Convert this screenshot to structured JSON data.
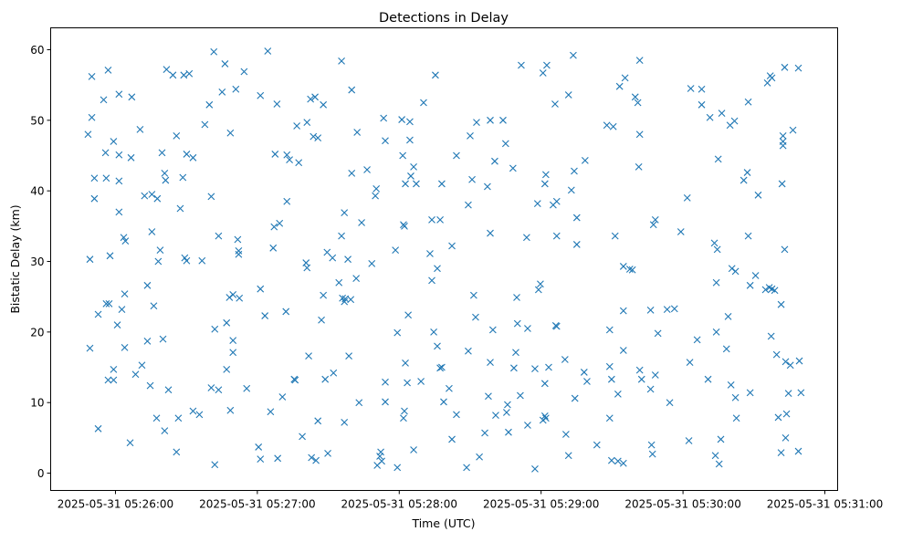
{
  "chart_data": {
    "type": "scatter",
    "title": "Detections in Delay",
    "xlabel": "Time (UTC)",
    "ylabel": "Bistatic Delay (km)",
    "x_units": "seconds since 2025-05-31 05:26:00",
    "xlim": [
      -27.4,
      305.4
    ],
    "ylim": [
      -2.45,
      63.1
    ],
    "grid": false,
    "marker": "x",
    "color": "#1f77b4",
    "xticks": [
      {
        "value": 0,
        "label": "2025-05-31 05:26:00"
      },
      {
        "value": 60,
        "label": "2025-05-31 05:27:00"
      },
      {
        "value": 120,
        "label": "2025-05-31 05:28:00"
      },
      {
        "value": 180,
        "label": "2025-05-31 05:29:00"
      },
      {
        "value": 240,
        "label": "2025-05-31 05:30:00"
      },
      {
        "value": 300,
        "label": "2025-05-31 05:31:00"
      }
    ],
    "yticks": [
      {
        "value": 0,
        "label": "0"
      },
      {
        "value": 10,
        "label": "10"
      },
      {
        "value": 20,
        "label": "20"
      },
      {
        "value": 30,
        "label": "30"
      },
      {
        "value": 40,
        "label": "40"
      },
      {
        "value": 50,
        "label": "50"
      },
      {
        "value": 60,
        "label": "60"
      }
    ],
    "points": [
      [
        -11.6,
        48.0
      ],
      [
        -10.8,
        30.3
      ],
      [
        -10.8,
        17.7
      ],
      [
        -10.0,
        56.2
      ],
      [
        -10.0,
        50.4
      ],
      [
        -8.9,
        41.8
      ],
      [
        -8.9,
        38.9
      ],
      [
        -7.3,
        22.5
      ],
      [
        -7.3,
        6.3
      ],
      [
        -5.0,
        52.9
      ],
      [
        -4.2,
        45.4
      ],
      [
        -3.9,
        41.8
      ],
      [
        -3.1,
        57.1
      ],
      [
        -3.9,
        24.0
      ],
      [
        -3.1,
        13.2
      ],
      [
        -2.3,
        30.8
      ],
      [
        -2.7,
        24.0
      ],
      [
        -0.8,
        13.2
      ],
      [
        -0.8,
        47.0
      ],
      [
        -0.8,
        14.7
      ],
      [
        0.8,
        21.0
      ],
      [
        1.5,
        53.7
      ],
      [
        1.5,
        41.4
      ],
      [
        1.5,
        45.1
      ],
      [
        1.5,
        37.0
      ],
      [
        2.7,
        23.2
      ],
      [
        3.5,
        33.4
      ],
      [
        3.9,
        25.4
      ],
      [
        3.9,
        17.8
      ],
      [
        4.2,
        32.9
      ],
      [
        6.2,
        4.3
      ],
      [
        6.6,
        44.7
      ],
      [
        6.9,
        53.3
      ],
      [
        8.5,
        14.0
      ],
      [
        10.4,
        48.7
      ],
      [
        11.2,
        15.3
      ],
      [
        12.3,
        39.3
      ],
      [
        13.5,
        26.6
      ],
      [
        13.5,
        18.7
      ],
      [
        14.7,
        12.4
      ],
      [
        15.4,
        34.2
      ],
      [
        15.4,
        39.5
      ],
      [
        16.2,
        23.7
      ],
      [
        17.4,
        7.8
      ],
      [
        18.1,
        30.0
      ],
      [
        17.7,
        38.9
      ],
      [
        18.9,
        31.6
      ],
      [
        19.7,
        45.4
      ],
      [
        20.1,
        19.0
      ],
      [
        20.8,
        42.5
      ],
      [
        21.2,
        41.5
      ],
      [
        20.8,
        6.0
      ],
      [
        21.6,
        57.2
      ],
      [
        22.4,
        11.8
      ],
      [
        24.3,
        56.4
      ],
      [
        25.8,
        47.8
      ],
      [
        25.8,
        3.0
      ],
      [
        26.6,
        7.8
      ],
      [
        27.4,
        37.5
      ],
      [
        28.5,
        41.9
      ],
      [
        28.9,
        56.4
      ],
      [
        29.3,
        30.5
      ],
      [
        30.1,
        45.2
      ],
      [
        30.1,
        30.1
      ],
      [
        31.2,
        56.6
      ],
      [
        32.8,
        44.7
      ],
      [
        32.8,
        8.8
      ],
      [
        35.5,
        8.3
      ],
      [
        36.6,
        30.1
      ],
      [
        37.8,
        49.4
      ],
      [
        39.7,
        52.2
      ],
      [
        40.5,
        39.2
      ],
      [
        40.5,
        12.1
      ],
      [
        41.6,
        59.7
      ],
      [
        42.0,
        1.2
      ],
      [
        42.0,
        20.4
      ],
      [
        43.6,
        11.8
      ],
      [
        43.6,
        33.6
      ],
      [
        45.1,
        54.0
      ],
      [
        46.3,
        58.0
      ],
      [
        47.0,
        21.3
      ],
      [
        47.0,
        14.7
      ],
      [
        48.2,
        24.9
      ],
      [
        48.6,
        48.2
      ],
      [
        48.6,
        8.9
      ],
      [
        49.7,
        25.3
      ],
      [
        49.7,
        18.8
      ],
      [
        49.7,
        17.1
      ],
      [
        50.9,
        54.4
      ],
      [
        51.7,
        33.1
      ],
      [
        52.1,
        31.5
      ],
      [
        52.1,
        31.0
      ],
      [
        52.4,
        24.8
      ],
      [
        54.4,
        56.9
      ],
      [
        55.5,
        12.0
      ],
      [
        60.5,
        3.7
      ],
      [
        61.3,
        26.1
      ],
      [
        61.3,
        53.5
      ],
      [
        61.3,
        2.0
      ],
      [
        63.2,
        22.3
      ],
      [
        64.4,
        59.8
      ],
      [
        65.6,
        8.7
      ],
      [
        66.7,
        31.9
      ],
      [
        67.1,
        34.9
      ],
      [
        67.5,
        45.2
      ],
      [
        68.3,
        52.3
      ],
      [
        68.6,
        2.1
      ],
      [
        69.4,
        35.4
      ],
      [
        70.6,
        10.8
      ],
      [
        72.5,
        38.5
      ],
      [
        72.1,
        22.9
      ],
      [
        72.5,
        45.1
      ],
      [
        73.6,
        44.4
      ],
      [
        75.6,
        13.3
      ],
      [
        76.0,
        13.2
      ],
      [
        76.7,
        49.2
      ],
      [
        77.5,
        44.0
      ],
      [
        79.0,
        5.2
      ],
      [
        80.6,
        29.8
      ],
      [
        81.0,
        29.1
      ],
      [
        81.0,
        49.7
      ],
      [
        81.7,
        16.6
      ],
      [
        82.5,
        53.0
      ],
      [
        82.9,
        2.2
      ],
      [
        84.4,
        53.3
      ],
      [
        83.7,
        47.7
      ],
      [
        84.8,
        1.8
      ],
      [
        85.6,
        7.4
      ],
      [
        85.6,
        47.5
      ],
      [
        87.1,
        21.7
      ],
      [
        87.9,
        25.2
      ],
      [
        87.9,
        52.2
      ],
      [
        88.7,
        13.3
      ],
      [
        89.5,
        31.3
      ],
      [
        89.8,
        2.8
      ],
      [
        91.8,
        30.5
      ],
      [
        92.2,
        14.2
      ],
      [
        94.5,
        27.0
      ],
      [
        95.6,
        33.6
      ],
      [
        95.6,
        58.4
      ],
      [
        96.0,
        24.8
      ],
      [
        96.8,
        24.3
      ],
      [
        96.8,
        36.9
      ],
      [
        96.8,
        7.2
      ],
      [
        97.2,
        24.7
      ],
      [
        98.3,
        30.3
      ],
      [
        98.7,
        16.6
      ],
      [
        99.5,
        24.6
      ],
      [
        99.9,
        42.5
      ],
      [
        99.9,
        54.3
      ],
      [
        102.2,
        48.3
      ],
      [
        101.8,
        27.6
      ],
      [
        103.0,
        10.0
      ],
      [
        104.1,
        35.5
      ],
      [
        106.4,
        43.0
      ],
      [
        108.4,
        29.7
      ],
      [
        109.9,
        39.3
      ],
      [
        110.3,
        40.3
      ],
      [
        110.7,
        1.1
      ],
      [
        111.8,
        2.4
      ],
      [
        112.2,
        3.0
      ],
      [
        112.6,
        1.7
      ],
      [
        113.4,
        50.3
      ],
      [
        114.1,
        47.1
      ],
      [
        114.1,
        12.9
      ],
      [
        114.1,
        10.1
      ],
      [
        118.4,
        31.6
      ],
      [
        119.2,
        19.9
      ],
      [
        119.2,
        0.8
      ],
      [
        121.1,
        50.1
      ],
      [
        121.5,
        45.0
      ],
      [
        122.2,
        35.0
      ],
      [
        121.8,
        35.2
      ],
      [
        122.6,
        41.0
      ],
      [
        122.2,
        8.8
      ],
      [
        121.8,
        7.8
      ],
      [
        122.6,
        15.6
      ],
      [
        123.8,
        22.4
      ],
      [
        123.4,
        12.8
      ],
      [
        124.5,
        49.8
      ],
      [
        124.5,
        47.2
      ],
      [
        124.9,
        42.1
      ],
      [
        126.1,
        43.4
      ],
      [
        126.1,
        3.3
      ],
      [
        127.2,
        41.0
      ],
      [
        129.2,
        13.0
      ],
      [
        130.3,
        52.5
      ],
      [
        133.0,
        31.1
      ],
      [
        133.8,
        27.3
      ],
      [
        133.8,
        35.9
      ],
      [
        134.6,
        20.0
      ],
      [
        135.3,
        56.4
      ],
      [
        136.1,
        29.0
      ],
      [
        136.1,
        18.0
      ],
      [
        137.3,
        14.9
      ],
      [
        138.0,
        15.0
      ],
      [
        137.3,
        35.9
      ],
      [
        138.0,
        41.0
      ],
      [
        138.8,
        10.1
      ],
      [
        141.1,
        12.0
      ],
      [
        142.3,
        4.8
      ],
      [
        142.3,
        32.2
      ],
      [
        144.2,
        45.0
      ],
      [
        144.2,
        8.3
      ],
      [
        148.5,
        0.8
      ],
      [
        149.2,
        38.0
      ],
      [
        149.2,
        17.3
      ],
      [
        150.0,
        47.8
      ],
      [
        150.8,
        41.6
      ],
      [
        151.5,
        25.2
      ],
      [
        152.3,
        22.1
      ],
      [
        152.7,
        49.7
      ],
      [
        153.9,
        2.3
      ],
      [
        156.2,
        5.7
      ],
      [
        157.3,
        40.6
      ],
      [
        157.7,
        10.9
      ],
      [
        158.5,
        50.0
      ],
      [
        158.5,
        15.7
      ],
      [
        158.5,
        34.0
      ],
      [
        159.6,
        20.3
      ],
      [
        160.4,
        44.2
      ],
      [
        160.8,
        8.2
      ],
      [
        163.9,
        50.0
      ],
      [
        165.0,
        46.7
      ],
      [
        165.4,
        8.6
      ],
      [
        165.8,
        9.7
      ],
      [
        166.2,
        5.8
      ],
      [
        168.1,
        43.2
      ],
      [
        168.5,
        14.9
      ],
      [
        169.3,
        17.1
      ],
      [
        169.7,
        24.9
      ],
      [
        170.0,
        21.2
      ],
      [
        171.2,
        11.0
      ],
      [
        171.6,
        57.8
      ],
      [
        173.9,
        33.4
      ],
      [
        174.3,
        6.8
      ],
      [
        174.3,
        20.5
      ],
      [
        177.4,
        14.8
      ],
      [
        177.4,
        0.6
      ],
      [
        178.5,
        38.2
      ],
      [
        178.9,
        26.0
      ],
      [
        179.7,
        26.8
      ],
      [
        180.8,
        56.7
      ],
      [
        180.8,
        7.5
      ],
      [
        181.6,
        8.1
      ],
      [
        181.6,
        41.0
      ],
      [
        182.0,
        42.3
      ],
      [
        182.4,
        57.8
      ],
      [
        181.6,
        12.7
      ],
      [
        182.0,
        7.8
      ],
      [
        183.2,
        15.0
      ],
      [
        185.1,
        38.0
      ],
      [
        185.9,
        52.3
      ],
      [
        186.2,
        20.9
      ],
      [
        186.6,
        20.8
      ],
      [
        186.6,
        38.5
      ],
      [
        186.6,
        33.6
      ],
      [
        190.1,
        16.1
      ],
      [
        190.5,
        5.5
      ],
      [
        191.6,
        53.6
      ],
      [
        191.6,
        2.5
      ],
      [
        192.8,
        40.1
      ],
      [
        193.6,
        59.2
      ],
      [
        194.0,
        42.8
      ],
      [
        194.3,
        10.6
      ],
      [
        195.1,
        36.2
      ],
      [
        195.1,
        32.4
      ],
      [
        198.2,
        14.3
      ],
      [
        198.6,
        44.3
      ],
      [
        199.4,
        13.0
      ],
      [
        203.6,
        4.0
      ],
      [
        207.8,
        49.3
      ],
      [
        209.0,
        20.3
      ],
      [
        209.0,
        15.1
      ],
      [
        209.0,
        7.8
      ],
      [
        209.8,
        13.3
      ],
      [
        209.8,
        1.8
      ],
      [
        210.5,
        49.1
      ],
      [
        211.3,
        33.6
      ],
      [
        212.5,
        11.2
      ],
      [
        212.5,
        1.7
      ],
      [
        213.2,
        54.8
      ],
      [
        214.8,
        23.0
      ],
      [
        214.8,
        29.3
      ],
      [
        214.8,
        17.4
      ],
      [
        215.5,
        56.0
      ],
      [
        214.8,
        1.4
      ],
      [
        217.5,
        28.9
      ],
      [
        218.6,
        28.8
      ],
      [
        219.8,
        53.3
      ],
      [
        220.9,
        52.5
      ],
      [
        221.3,
        43.4
      ],
      [
        221.7,
        58.5
      ],
      [
        221.7,
        48.0
      ],
      [
        221.7,
        14.6
      ],
      [
        222.5,
        13.3
      ],
      [
        226.3,
        23.1
      ],
      [
        226.7,
        4.0
      ],
      [
        227.1,
        2.7
      ],
      [
        226.3,
        11.9
      ],
      [
        227.5,
        35.2
      ],
      [
        228.3,
        35.9
      ],
      [
        228.3,
        13.9
      ],
      [
        229.4,
        19.8
      ],
      [
        233.3,
        23.2
      ],
      [
        234.4,
        10.0
      ],
      [
        236.4,
        23.3
      ],
      [
        239.1,
        34.2
      ],
      [
        241.8,
        39.0
      ],
      [
        242.5,
        4.6
      ],
      [
        243.3,
        54.5
      ],
      [
        242.9,
        15.7
      ],
      [
        246.0,
        18.9
      ],
      [
        247.9,
        54.4
      ],
      [
        247.9,
        52.2
      ],
      [
        250.6,
        13.3
      ],
      [
        251.4,
        50.4
      ],
      [
        253.3,
        32.6
      ],
      [
        254.5,
        31.7
      ],
      [
        254.9,
        44.5
      ],
      [
        254.1,
        27.0
      ],
      [
        254.1,
        20.0
      ],
      [
        253.7,
        2.5
      ],
      [
        255.3,
        1.3
      ],
      [
        256.0,
        4.8
      ],
      [
        256.4,
        51.0
      ],
      [
        258.4,
        17.6
      ],
      [
        259.1,
        22.2
      ],
      [
        259.9,
        49.3
      ],
      [
        260.3,
        12.5
      ],
      [
        260.7,
        29.0
      ],
      [
        261.8,
        49.9
      ],
      [
        262.2,
        28.6
      ],
      [
        262.2,
        10.7
      ],
      [
        262.6,
        7.8
      ],
      [
        265.7,
        41.5
      ],
      [
        267.6,
        33.6
      ],
      [
        267.2,
        42.6
      ],
      [
        267.6,
        52.6
      ],
      [
        268.4,
        26.6
      ],
      [
        268.4,
        11.4
      ],
      [
        270.7,
        28.0
      ],
      [
        271.8,
        39.4
      ],
      [
        274.9,
        26.0
      ],
      [
        275.7,
        55.3
      ],
      [
        276.9,
        56.3
      ],
      [
        276.5,
        26.3
      ],
      [
        277.3,
        19.4
      ],
      [
        277.6,
        56.0
      ],
      [
        277.6,
        26.1
      ],
      [
        278.8,
        25.9
      ],
      [
        279.6,
        16.8
      ],
      [
        280.3,
        7.9
      ],
      [
        281.5,
        23.9
      ],
      [
        281.5,
        2.9
      ],
      [
        282.3,
        47.8
      ],
      [
        282.3,
        47.0
      ],
      [
        282.3,
        46.4
      ],
      [
        281.9,
        41.0
      ],
      [
        283.0,
        31.7
      ],
      [
        283.0,
        57.5
      ],
      [
        283.4,
        15.8
      ],
      [
        283.4,
        5.0
      ],
      [
        283.8,
        8.4
      ],
      [
        284.6,
        11.3
      ],
      [
        285.4,
        15.3
      ],
      [
        286.5,
        48.6
      ],
      [
        288.8,
        57.4
      ],
      [
        288.8,
        3.1
      ],
      [
        289.2,
        15.9
      ],
      [
        289.9,
        11.4
      ]
    ]
  }
}
